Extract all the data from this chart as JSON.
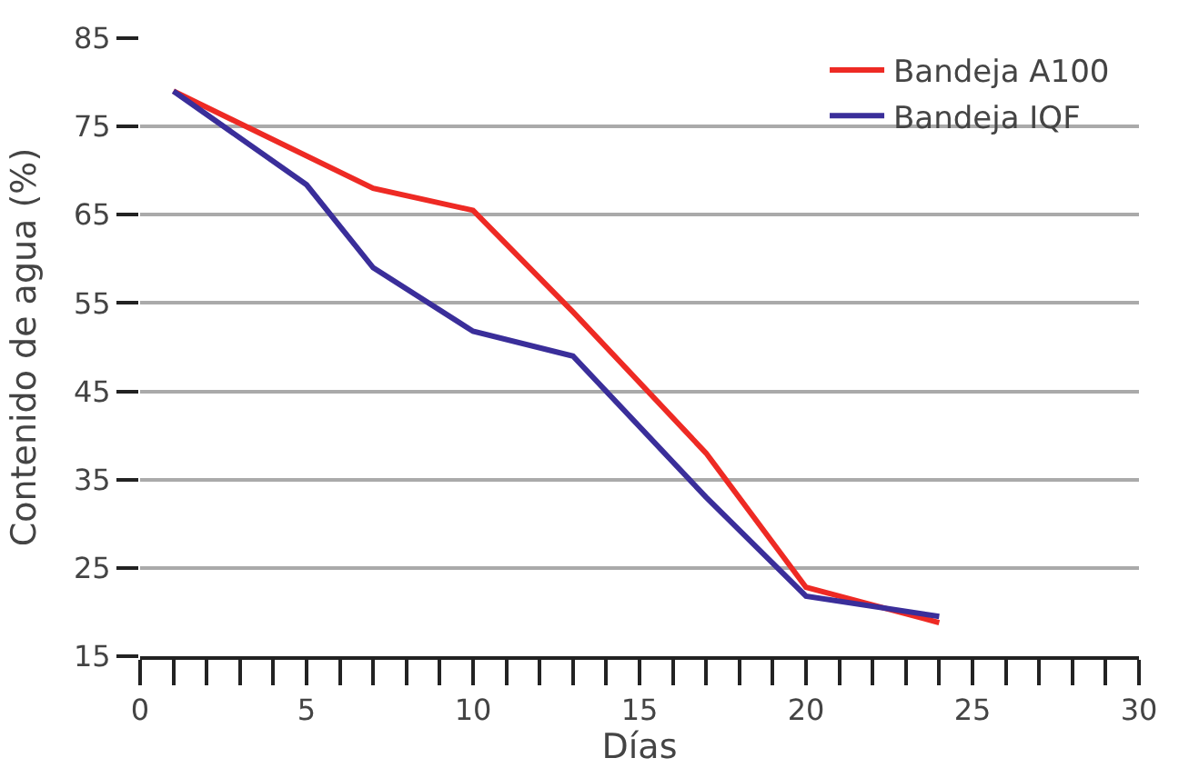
{
  "chart_data": {
    "type": "line",
    "xlabel": "Días",
    "ylabel": "Contenido de agua (%)",
    "xlim": [
      0,
      30
    ],
    "xticks": [
      0,
      5,
      10,
      15,
      20,
      25,
      30
    ],
    "ylim": [
      15,
      85
    ],
    "yticks": [
      15,
      25,
      35,
      45,
      55,
      65,
      75,
      85
    ],
    "grid": "y",
    "legend": "top right",
    "line_style": "solid",
    "series": [
      {
        "name": "Bandeja A100",
        "color": "#ee2a24",
        "x": [
          1,
          7,
          10,
          13,
          17,
          20,
          24
        ],
        "values": [
          79,
          68,
          65.5,
          54,
          38,
          22.8,
          18.8
        ]
      },
      {
        "name": "Bandeja IQF",
        "color": "#3a2e9a",
        "x": [
          1,
          5,
          7,
          10,
          13,
          17,
          20,
          24
        ],
        "values": [
          79,
          68.4,
          59,
          51.8,
          49,
          33,
          21.8,
          19.5
        ]
      }
    ]
  }
}
